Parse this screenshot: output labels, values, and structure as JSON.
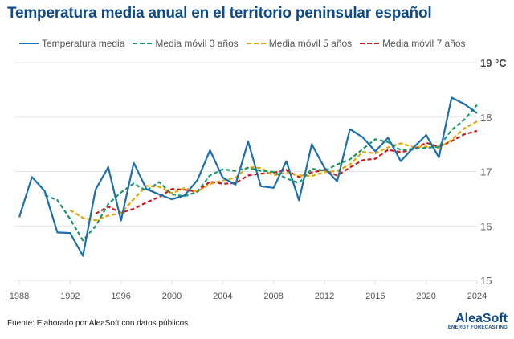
{
  "chart_data": {
    "type": "line",
    "title": "Temperatura media anual en el territorio peninsular español",
    "ylabel": "°C",
    "ylim": [
      15,
      19
    ],
    "yticks": [
      15,
      16,
      17,
      18,
      19
    ],
    "xlim": [
      1988,
      2024
    ],
    "xticks": [
      1988,
      1992,
      1996,
      2000,
      2004,
      2008,
      2012,
      2016,
      2020,
      2024
    ],
    "grid": "horizontal",
    "legend_position": "top",
    "x": [
      1988,
      1989,
      1990,
      1991,
      1992,
      1993,
      1994,
      1995,
      1996,
      1997,
      1998,
      1999,
      2000,
      2001,
      2002,
      2003,
      2004,
      2005,
      2006,
      2007,
      2008,
      2009,
      2010,
      2011,
      2012,
      2013,
      2014,
      2015,
      2016,
      2017,
      2018,
      2019,
      2020,
      2021,
      2022,
      2023,
      2024
    ],
    "series": [
      {
        "name": "Temperatura media",
        "color": "#1a6fad",
        "style": "solid",
        "values": [
          16.16,
          16.9,
          16.64,
          15.88,
          15.87,
          15.45,
          16.67,
          17.08,
          16.1,
          17.16,
          16.68,
          16.58,
          16.49,
          16.56,
          16.84,
          17.39,
          16.89,
          16.76,
          17.55,
          16.73,
          16.7,
          17.19,
          16.47,
          17.5,
          17.07,
          16.82,
          17.78,
          17.63,
          17.37,
          17.62,
          17.19,
          17.44,
          17.67,
          17.26,
          18.36,
          18.24,
          18.07
        ]
      },
      {
        "name": "Media móvil 3 años",
        "color": "#1a9a6a",
        "style": "dashed",
        "window": 3
      },
      {
        "name": "Media móvil 5 años",
        "color": "#e6a400",
        "style": "dashed",
        "window": 5
      },
      {
        "name": "Media móvil 7 años",
        "color": "#cc1a1a",
        "style": "dashed",
        "window": 7
      }
    ]
  },
  "footer": {
    "source": "Fuente: Elaborado por AleaSoft con datos públicos",
    "logo_name": "AleaSoft",
    "logo_tagline": "ENERGY FORECASTING"
  }
}
